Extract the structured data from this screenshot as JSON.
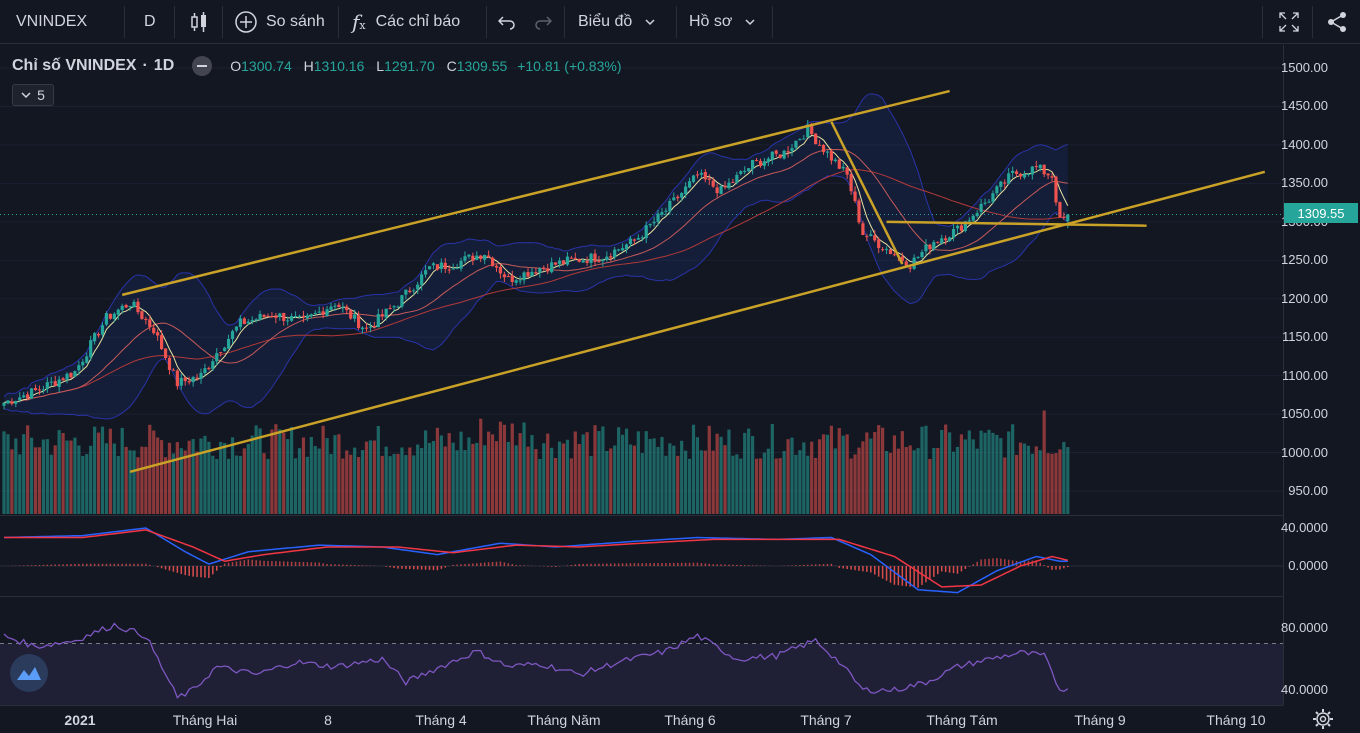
{
  "toolbar": {
    "symbol": "VNINDEX",
    "interval": "D",
    "compare_label": "So sánh",
    "indicators_label": "Các chỉ báo",
    "chart_label": "Biểu đồ",
    "profile_label": "Hồ sơ"
  },
  "legend": {
    "title": "Chỉ số VNINDEX",
    "interval": "1D",
    "open_label": "O",
    "open": "1300.74",
    "high_label": "H",
    "high": "1310.16",
    "low_label": "L",
    "low": "1291.70",
    "close_label": "C",
    "close": "1309.55",
    "change": "+10.81 (+0.83%)",
    "collapsed_count": "5"
  },
  "price_tag": "1309.55",
  "colors": {
    "up": "#26a69a",
    "down": "#ef5350",
    "trend": "#c9a227",
    "macd": "#2962ff",
    "signal": "#f23645",
    "rsi": "#7e57c2"
  },
  "chart_data": [
    {
      "type": "candlestick",
      "title": "Chỉ số VNINDEX · 1D",
      "ylim": [
        930,
        1515
      ],
      "y_ticks": [
        "1500.00",
        "1450.00",
        "1400.00",
        "1350.00",
        "1300.00",
        "1250.00",
        "1200.00",
        "1150.00",
        "1100.00",
        "1050.00",
        "1000.00",
        "950.00"
      ],
      "x_ticks": [
        "2021",
        "Tháng Hai",
        "8",
        "Tháng 4",
        "Tháng Năm",
        "Tháng 6",
        "Tháng 7",
        "Tháng Tám",
        "Tháng 9",
        "Tháng 10"
      ],
      "price_anchors": [
        [
          0,
          1065
        ],
        [
          8,
          1080
        ],
        [
          18,
          1105
        ],
        [
          26,
          1175
        ],
        [
          32,
          1195
        ],
        [
          38,
          1160
        ],
        [
          44,
          1090
        ],
        [
          50,
          1100
        ],
        [
          54,
          1130
        ],
        [
          60,
          1168
        ],
        [
          68,
          1180
        ],
        [
          76,
          1170
        ],
        [
          84,
          1195
        ],
        [
          92,
          1160
        ],
        [
          100,
          1195
        ],
        [
          108,
          1240
        ],
        [
          114,
          1245
        ],
        [
          122,
          1260
        ],
        [
          128,
          1225
        ],
        [
          136,
          1240
        ],
        [
          144,
          1250
        ],
        [
          152,
          1255
        ],
        [
          160,
          1275
        ],
        [
          168,
          1315
        ],
        [
          176,
          1360
        ],
        [
          182,
          1340
        ],
        [
          190,
          1375
        ],
        [
          198,
          1390
        ],
        [
          204,
          1420
        ],
        [
          208,
          1395
        ],
        [
          214,
          1360
        ],
        [
          218,
          1285
        ],
        [
          224,
          1265
        ],
        [
          230,
          1245
        ],
        [
          236,
          1275
        ],
        [
          242,
          1290
        ],
        [
          250,
          1330
        ],
        [
          256,
          1362
        ],
        [
          262,
          1370
        ],
        [
          266,
          1360
        ],
        [
          268,
          1300
        ],
        [
          270,
          1309.55
        ]
      ],
      "last_candle": {
        "open": 1300.74,
        "high": 1310.16,
        "low": 1291.7,
        "close": 1309.55,
        "change": 10.81,
        "change_pct": 0.83
      },
      "trendlines": [
        {
          "name": "channel-top",
          "points": [
            [
              30,
              1205
            ],
            [
              240,
              1470
            ]
          ]
        },
        {
          "name": "channel-bottom",
          "points": [
            [
              32,
              975
            ],
            [
              320,
              1365
            ]
          ]
        },
        {
          "name": "downtrend",
          "points": [
            [
              210,
              1430
            ],
            [
              228,
              1245
            ]
          ]
        },
        {
          "name": "support",
          "points": [
            [
              224,
              1300
            ],
            [
              290,
              1295
            ]
          ]
        }
      ],
      "volume_scale": "relative"
    },
    {
      "type": "line",
      "name": "MACD",
      "y_ticks": [
        "40.0000",
        "0.0000"
      ],
      "ylim": [
        -40,
        50
      ],
      "series": [
        {
          "name": "macd",
          "anchors": [
            [
              0,
              30
            ],
            [
              20,
              32
            ],
            [
              36,
              40
            ],
            [
              46,
              15
            ],
            [
              52,
              2
            ],
            [
              62,
              15
            ],
            [
              80,
              22
            ],
            [
              96,
              20
            ],
            [
              110,
              12
            ],
            [
              126,
              24
            ],
            [
              140,
              20
            ],
            [
              160,
              26
            ],
            [
              176,
              30
            ],
            [
              196,
              28
            ],
            [
              210,
              30
            ],
            [
              220,
              12
            ],
            [
              232,
              -25
            ],
            [
              242,
              -28
            ],
            [
              252,
              -5
            ],
            [
              262,
              10
            ],
            [
              268,
              5
            ]
          ]
        },
        {
          "name": "signal",
          "anchors": [
            [
              0,
              30
            ],
            [
              20,
              30
            ],
            [
              36,
              38
            ],
            [
              48,
              20
            ],
            [
              56,
              5
            ],
            [
              66,
              12
            ],
            [
              82,
              20
            ],
            [
              100,
              20
            ],
            [
              114,
              14
            ],
            [
              130,
              22
            ],
            [
              146,
              20
            ],
            [
              162,
              24
            ],
            [
              180,
              28
            ],
            [
              200,
              28
            ],
            [
              212,
              28
            ],
            [
              226,
              10
            ],
            [
              238,
              -22
            ],
            [
              248,
              -20
            ],
            [
              258,
              0
            ],
            [
              266,
              10
            ],
            [
              270,
              6
            ]
          ]
        }
      ]
    },
    {
      "type": "line",
      "name": "RSI",
      "y_ticks": [
        "80.0000",
        "40.0000"
      ],
      "ylim": [
        30,
        95
      ],
      "series": [
        {
          "name": "rsi",
          "anchors": [
            [
              0,
              75
            ],
            [
              8,
              68
            ],
            [
              18,
              72
            ],
            [
              28,
              82
            ],
            [
              36,
              75
            ],
            [
              44,
              35
            ],
            [
              48,
              40
            ],
            [
              54,
              55
            ],
            [
              64,
              50
            ],
            [
              74,
              58
            ],
            [
              84,
              55
            ],
            [
              96,
              60
            ],
            [
              102,
              45
            ],
            [
              108,
              52
            ],
            [
              120,
              65
            ],
            [
              128,
              55
            ],
            [
              136,
              57
            ],
            [
              146,
              50
            ],
            [
              156,
              58
            ],
            [
              168,
              65
            ],
            [
              176,
              75
            ],
            [
              186,
              60
            ],
            [
              196,
              62
            ],
            [
              206,
              72
            ],
            [
              212,
              58
            ],
            [
              218,
              40
            ],
            [
              226,
              40
            ],
            [
              234,
              45
            ],
            [
              242,
              55
            ],
            [
              250,
              60
            ],
            [
              258,
              64
            ],
            [
              264,
              62
            ],
            [
              268,
              40
            ],
            [
              270,
              42
            ]
          ]
        }
      ]
    }
  ]
}
